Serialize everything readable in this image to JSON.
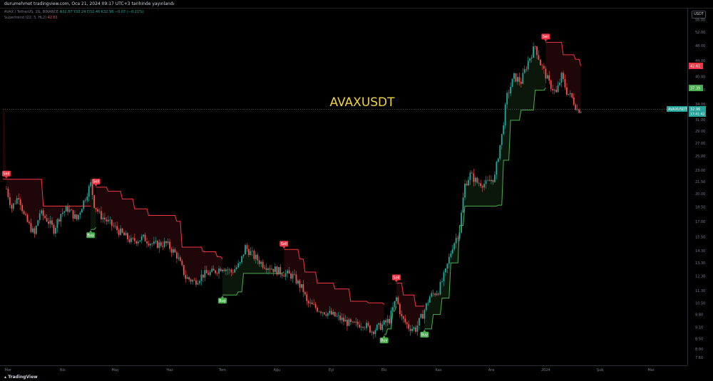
{
  "header": {
    "author_line": "durumehmet tradingview.com, Oca 21, 2024 09:17 UTC+3 tarihinde yayınlandı",
    "symbol_line": "AVAX / TetherUS, 1G, BINANCE",
    "ohlc": "A32.87  Y33.24  D32.46  K32.96  −0.07 (−0.21%)",
    "indicator_line": "Supertrend (22, 3, HL2)",
    "indicator_value": "42.61"
  },
  "currency_button": "USDT",
  "footer": {
    "logo_text": "TradingView"
  },
  "colors": {
    "up": "#26a69a",
    "down": "#ef5350",
    "st_up": "#4caf50",
    "st_down": "#f23645",
    "title": "#f0d23c",
    "sell": "#f23645",
    "buy": "#4caf50"
  },
  "chart_data": {
    "type": "candlestick",
    "title": "AVAXUSDT",
    "symbol_label": "AVAXUSDT",
    "last_price": "32.96",
    "countdown": "17:41:42",
    "supertrend_down_label": "42.61",
    "supertrend_up_label": "37.39",
    "y_scale": "log",
    "ylim": [
      8.0,
      58.0
    ],
    "y_ticks": [
      "56.00",
      "52.00",
      "48.00",
      "44.00",
      "40.00",
      "37.00",
      "34.00",
      "31.00",
      "29.00",
      "27.00",
      "25.00",
      "23.00",
      "21.50",
      "20.00",
      "18.50",
      "17.00",
      "15.50",
      "14.30",
      "13.30",
      "12.30",
      "11.30",
      "10.50",
      "9.80",
      "9.10",
      "8.50",
      "8.00",
      "7.60"
    ],
    "x_ticks": [
      "Mar",
      "Nis",
      "May",
      "Haz",
      "Tem",
      "Ağu",
      "Eyl",
      "Eki",
      "Kas",
      "Ara",
      "2024",
      "Şub",
      "Mar"
    ],
    "close_path": [
      {
        "x": "2023-02-28",
        "y": 20.6
      },
      {
        "x": "2023-03-03",
        "y": 18.4
      },
      {
        "x": "2023-03-07",
        "y": 19.8
      },
      {
        "x": "2023-03-10",
        "y": 17.6
      },
      {
        "x": "2023-03-12",
        "y": 16.9
      },
      {
        "x": "2023-03-16",
        "y": 15.7
      },
      {
        "x": "2023-03-19",
        "y": 17.9
      },
      {
        "x": "2023-03-23",
        "y": 17.2
      },
      {
        "x": "2023-03-27",
        "y": 16.2
      },
      {
        "x": "2023-03-31",
        "y": 17.8
      },
      {
        "x": "2023-04-04",
        "y": 18.3
      },
      {
        "x": "2023-04-09",
        "y": 17.2
      },
      {
        "x": "2023-04-13",
        "y": 19.1
      },
      {
        "x": "2023-04-17",
        "y": 21.2
      },
      {
        "x": "2023-04-19",
        "y": 18.8
      },
      {
        "x": "2023-04-22",
        "y": 17.7
      },
      {
        "x": "2023-04-27",
        "y": 16.9
      },
      {
        "x": "2023-05-04",
        "y": 15.9
      },
      {
        "x": "2023-05-10",
        "y": 15.1
      },
      {
        "x": "2023-05-17",
        "y": 15.4
      },
      {
        "x": "2023-05-23",
        "y": 14.8
      },
      {
        "x": "2023-05-30",
        "y": 14.9
      },
      {
        "x": "2023-06-05",
        "y": 13.9
      },
      {
        "x": "2023-06-10",
        "y": 12.2
      },
      {
        "x": "2023-06-15",
        "y": 11.9
      },
      {
        "x": "2023-06-20",
        "y": 12.4
      },
      {
        "x": "2023-06-26",
        "y": 12.6
      },
      {
        "x": "2023-07-01",
        "y": 13.0
      },
      {
        "x": "2023-07-06",
        "y": 12.6
      },
      {
        "x": "2023-07-11",
        "y": 13.2
      },
      {
        "x": "2023-07-14",
        "y": 14.6
      },
      {
        "x": "2023-07-19",
        "y": 13.8
      },
      {
        "x": "2023-07-24",
        "y": 13.2
      },
      {
        "x": "2023-07-29",
        "y": 12.9
      },
      {
        "x": "2023-08-03",
        "y": 12.6
      },
      {
        "x": "2023-08-10",
        "y": 12.3
      },
      {
        "x": "2023-08-16",
        "y": 11.3
      },
      {
        "x": "2023-08-18",
        "y": 10.5
      },
      {
        "x": "2023-08-25",
        "y": 10.1
      },
      {
        "x": "2023-09-01",
        "y": 9.8
      },
      {
        "x": "2023-09-07",
        "y": 9.5
      },
      {
        "x": "2023-09-13",
        "y": 9.2
      },
      {
        "x": "2023-09-19",
        "y": 9.3
      },
      {
        "x": "2023-09-24",
        "y": 8.9
      },
      {
        "x": "2023-09-30",
        "y": 9.2
      },
      {
        "x": "2023-10-04",
        "y": 9.5
      },
      {
        "x": "2023-10-08",
        "y": 10.8
      },
      {
        "x": "2023-10-11",
        "y": 9.6
      },
      {
        "x": "2023-10-15",
        "y": 9.1
      },
      {
        "x": "2023-10-19",
        "y": 9.0
      },
      {
        "x": "2023-10-23",
        "y": 9.8
      },
      {
        "x": "2023-10-27",
        "y": 10.9
      },
      {
        "x": "2023-11-01",
        "y": 11.3
      },
      {
        "x": "2023-11-05",
        "y": 12.6
      },
      {
        "x": "2023-11-09",
        "y": 14.7
      },
      {
        "x": "2023-11-13",
        "y": 16.1
      },
      {
        "x": "2023-11-16",
        "y": 21.1
      },
      {
        "x": "2023-11-19",
        "y": 22.4
      },
      {
        "x": "2023-11-23",
        "y": 21.4
      },
      {
        "x": "2023-11-28",
        "y": 21.2
      },
      {
        "x": "2023-12-03",
        "y": 22.1
      },
      {
        "x": "2023-12-07",
        "y": 28.2
      },
      {
        "x": "2023-12-10",
        "y": 35.6
      },
      {
        "x": "2023-12-14",
        "y": 39.9
      },
      {
        "x": "2023-12-18",
        "y": 38.8
      },
      {
        "x": "2023-12-22",
        "y": 43.8
      },
      {
        "x": "2023-12-26",
        "y": 47.9
      },
      {
        "x": "2023-12-29",
        "y": 43.2
      },
      {
        "x": "2024-01-03",
        "y": 38.4
      },
      {
        "x": "2024-01-07",
        "y": 36.2
      },
      {
        "x": "2024-01-10",
        "y": 40.1
      },
      {
        "x": "2024-01-13",
        "y": 36.6
      },
      {
        "x": "2024-01-16",
        "y": 35.2
      },
      {
        "x": "2024-01-19",
        "y": 32.9
      },
      {
        "x": "2024-01-21",
        "y": 32.96
      }
    ],
    "supertrend": [
      {
        "dir": "down",
        "points": [
          {
            "x": "2023-02-26",
            "y": 21.8
          },
          {
            "x": "2023-03-12",
            "y": 21.8
          },
          {
            "x": "2023-03-21",
            "y": 18.6
          },
          {
            "x": "2023-04-17",
            "y": 18.6
          }
        ]
      },
      {
        "dir": "up",
        "points": [
          {
            "x": "2023-04-17",
            "y": 16.2
          },
          {
            "x": "2023-04-20",
            "y": 16.4
          }
        ]
      },
      {
        "dir": "down",
        "points": [
          {
            "x": "2023-04-20",
            "y": 20.8
          },
          {
            "x": "2023-04-27",
            "y": 20.3
          },
          {
            "x": "2023-05-05",
            "y": 19.4
          },
          {
            "x": "2023-05-12",
            "y": 18.3
          },
          {
            "x": "2023-05-20",
            "y": 17.6
          },
          {
            "x": "2023-06-05",
            "y": 17.0
          },
          {
            "x": "2023-06-08",
            "y": 14.6
          },
          {
            "x": "2023-06-20",
            "y": 14.2
          },
          {
            "x": "2023-06-28",
            "y": 13.8
          },
          {
            "x": "2023-07-01",
            "y": 13.6
          }
        ]
      },
      {
        "dir": "up",
        "points": [
          {
            "x": "2023-07-01",
            "y": 11.0
          },
          {
            "x": "2023-07-10",
            "y": 11.2
          },
          {
            "x": "2023-07-13",
            "y": 12.5
          },
          {
            "x": "2023-08-05",
            "y": 12.6
          }
        ]
      },
      {
        "dir": "down",
        "points": [
          {
            "x": "2023-08-05",
            "y": 14.4
          },
          {
            "x": "2023-08-14",
            "y": 13.6
          },
          {
            "x": "2023-08-17",
            "y": 12.6
          },
          {
            "x": "2023-08-24",
            "y": 11.8
          },
          {
            "x": "2023-09-03",
            "y": 11.4
          },
          {
            "x": "2023-09-12",
            "y": 10.6
          },
          {
            "x": "2023-09-22",
            "y": 10.5
          },
          {
            "x": "2023-10-01",
            "y": 10.4
          }
        ]
      },
      {
        "dir": "up",
        "points": [
          {
            "x": "2023-10-01",
            "y": 8.7
          },
          {
            "x": "2023-10-03",
            "y": 9.0
          },
          {
            "x": "2023-10-06",
            "y": 10.0
          },
          {
            "x": "2023-10-08",
            "y": 10.3
          }
        ]
      },
      {
        "dir": "down",
        "points": [
          {
            "x": "2023-10-08",
            "y": 11.8
          },
          {
            "x": "2023-10-12",
            "y": 11.0
          },
          {
            "x": "2023-10-19",
            "y": 10.3
          },
          {
            "x": "2023-10-24",
            "y": 10.3
          }
        ]
      },
      {
        "dir": "up",
        "points": [
          {
            "x": "2023-10-24",
            "y": 9.0
          },
          {
            "x": "2023-10-29",
            "y": 9.8
          },
          {
            "x": "2023-11-03",
            "y": 10.8
          },
          {
            "x": "2023-11-08",
            "y": 13.3
          },
          {
            "x": "2023-11-13",
            "y": 16.6
          },
          {
            "x": "2023-11-16",
            "y": 18.6
          },
          {
            "x": "2023-12-05",
            "y": 18.7
          },
          {
            "x": "2023-12-08",
            "y": 24.4
          },
          {
            "x": "2023-12-12",
            "y": 30.9
          },
          {
            "x": "2023-12-18",
            "y": 32.8
          },
          {
            "x": "2023-12-26",
            "y": 36.9
          },
          {
            "x": "2024-01-01",
            "y": 37.4
          }
        ]
      },
      {
        "dir": "down",
        "points": [
          {
            "x": "2024-01-01",
            "y": 49.0
          },
          {
            "x": "2024-01-11",
            "y": 45.5
          },
          {
            "x": "2024-01-18",
            "y": 44.3
          },
          {
            "x": "2024-01-21",
            "y": 42.61
          }
        ]
      }
    ],
    "signals": [
      {
        "label": "Sell",
        "x": "2023-02-28",
        "y": 21.8,
        "type": "sell"
      },
      {
        "label": "Sell",
        "x": "2023-04-20",
        "y": 20.8,
        "type": "sell"
      },
      {
        "label": "Buy",
        "x": "2023-04-17",
        "y": 16.2,
        "type": "buy"
      },
      {
        "label": "Buy",
        "x": "2023-07-01",
        "y": 11.0,
        "type": "buy"
      },
      {
        "label": "Sell",
        "x": "2023-08-05",
        "y": 14.4,
        "type": "sell"
      },
      {
        "label": "Buy",
        "x": "2023-10-01",
        "y": 8.7,
        "type": "buy"
      },
      {
        "label": "Sell",
        "x": "2023-10-08",
        "y": 11.8,
        "type": "sell"
      },
      {
        "label": "Buy",
        "x": "2023-10-24",
        "y": 9.0,
        "type": "buy"
      },
      {
        "label": "Sell",
        "x": "2024-01-01",
        "y": 49.0,
        "type": "sell"
      }
    ]
  }
}
